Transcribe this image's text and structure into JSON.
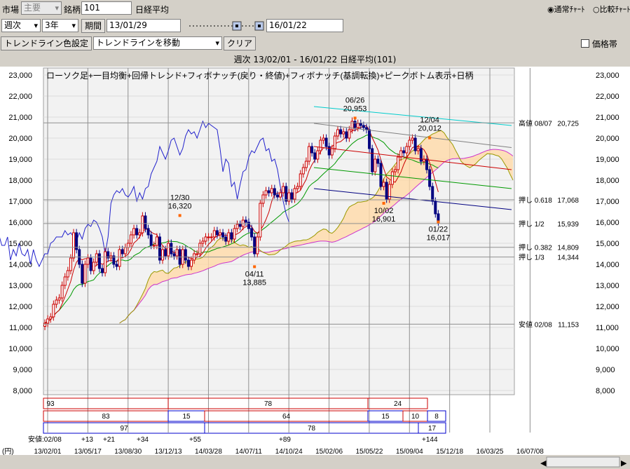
{
  "toolbar1": {
    "market_label": "市場",
    "market_value": "主要",
    "code_label": "銘柄",
    "code_value": "101",
    "name": "日経平均",
    "radio_normal": "通常ﾁｬｰﾄ",
    "radio_compare": "比較ﾁｬｰﾄ"
  },
  "toolbar2": {
    "interval": "週次",
    "range": "3年",
    "period_button": "期間",
    "start_date": "13/01/29",
    "end_date": "16/01/22"
  },
  "toolbar3": {
    "trend_color_button": "トレンドライン色設定",
    "trend_mode": "トレンドラインを移動",
    "clear_button": "クリア",
    "price_band": "価格帯"
  },
  "chart_header": "週次 13/02/01 - 16/01/22  日経平均(101)",
  "chart_data": {
    "type": "candlestick",
    "title": "ローソク足+一目均衡+回帰トレンド+フィボナッチ(戻り・終値)+フィボナッチ(基調転換)+ピークボトム表示+日柄",
    "ylim": [
      8000,
      23000
    ],
    "y_ticks": [
      "23,000",
      "22,000",
      "21,000",
      "20,000",
      "19,000",
      "18,000",
      "17,000",
      "16,000",
      "15,000",
      "14,000",
      "13,000",
      "12,000",
      "11,000",
      "10,000",
      "9,000",
      "8,000"
    ],
    "x_ticks": [
      "13/02/01",
      "13/05/17",
      "13/08/30",
      "13/12/13",
      "14/03/28",
      "14/07/11",
      "14/10/24",
      "15/02/06",
      "15/05/22",
      "15/09/04",
      "15/12/18",
      "16/03/25",
      "16/07/08"
    ],
    "x_unit": "(円)",
    "weekly_close": [
      11200,
      11400,
      11500,
      12100,
      12300,
      12400,
      13000,
      13400,
      13700,
      14300,
      15500,
      14700,
      14000,
      13100,
      14000,
      14300,
      13700,
      14100,
      14500,
      13800,
      13600,
      14600,
      14300,
      14400,
      14000,
      13900,
      14700,
      14500,
      14800,
      15000,
      15400,
      15700,
      15400,
      15500,
      16300,
      15700,
      15400,
      14900,
      14900,
      15300,
      14200,
      14700,
      14400,
      15000,
      14500,
      14400,
      14700,
      14000,
      14700,
      14200,
      13900,
      14200,
      14500,
      14500,
      15000,
      15100,
      15300,
      15300,
      15300,
      15600,
      15400,
      15500,
      15300,
      15100,
      15500,
      15200,
      15700,
      15900,
      15800,
      16100,
      16000,
      15700,
      15300,
      14500,
      15300,
      16900,
      17300,
      17500,
      17400,
      17600,
      17300,
      17200,
      17400,
      17700,
      17000,
      17400,
      17100,
      17600,
      17700,
      18300,
      18600,
      18900,
      19600,
      19300,
      19000,
      19400,
      19900,
      20000,
      19600,
      19200,
      19500,
      20100,
      20400,
      20200,
      20300,
      20000,
      20400,
      20800,
      20500,
      20700,
      20600,
      20500,
      20400,
      19500,
      18400,
      19000,
      18800,
      17700,
      17900,
      17100,
      17800,
      18400,
      18500,
      19100,
      19400,
      19300,
      19600,
      19900,
      20000,
      19400,
      19500,
      18900,
      19000,
      18500,
      17700,
      17000,
      16400,
      16017
    ],
    "peaks": [
      {
        "date": "12/30",
        "value": "16,320"
      },
      {
        "date": "04/11",
        "value": "13,885"
      },
      {
        "date": "06/26",
        "value": "20,953"
      },
      {
        "date": "10/02",
        "value": "16,901"
      },
      {
        "date": "12/04",
        "value": "20,012"
      },
      {
        "date": "01/22",
        "value": "16,017"
      }
    ],
    "fib_levels": [
      {
        "label": "高値 08/07",
        "value": 20725,
        "text": "20,725"
      },
      {
        "label": "押し 0.618",
        "value": 17068,
        "text": "17,068"
      },
      {
        "label": "押し 1/2",
        "value": 15939,
        "text": "15,939"
      },
      {
        "label": "押し 0.382",
        "value": 14809,
        "text": "14,809"
      },
      {
        "label": "押し 1/3",
        "value": 14344,
        "text": "14,344"
      },
      {
        "label": "安値 02/08",
        "value": 11153,
        "text": "11,153"
      }
    ],
    "higara_rows": [
      [
        "93",
        "78",
        "24"
      ],
      [
        "83",
        "15",
        "64",
        "15",
        "10",
        "8"
      ],
      [
        "97",
        "78",
        "17"
      ]
    ],
    "higara_bottom": [
      "安値:02/08",
      "+13",
      "+21",
      "+34",
      "+55",
      "+89",
      "+144"
    ],
    "colors": {
      "up": "#cc0000",
      "down": "#000080",
      "cloud": "#ffd9a8",
      "span_b": "#cc33cc",
      "lagging": "#2222cc",
      "tenkan": "#cc0000",
      "kijun": "#009900"
    }
  }
}
